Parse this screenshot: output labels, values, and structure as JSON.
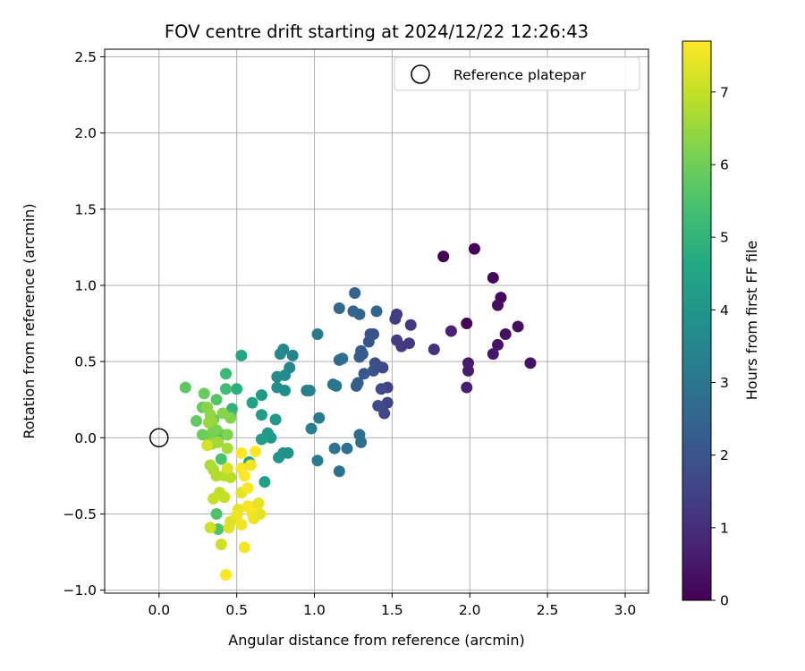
{
  "chart_data": {
    "type": "scatter",
    "title": "FOV centre drift starting at 2024/12/22 12:26:43",
    "xlabel": "Angular distance from reference (arcmin)",
    "ylabel": "Rotation from reference (arcmin)",
    "colorbar_label": "Hours from first FF file",
    "xlim": [
      -0.35,
      3.15
    ],
    "ylim": [
      -1.02,
      2.55
    ],
    "clim": [
      0,
      7.7
    ],
    "colormap": "viridis",
    "grid": true,
    "legend_position": "top-right",
    "xticks": [
      0.0,
      0.5,
      1.0,
      1.5,
      2.0,
      2.5,
      3.0
    ],
    "xtick_labels": [
      "0.0",
      "0.5",
      "1.0",
      "1.5",
      "2.0",
      "2.5",
      "3.0"
    ],
    "yticks": [
      -1.0,
      -0.5,
      0.0,
      0.5,
      1.0,
      1.5,
      2.0,
      2.5
    ],
    "ytick_labels": [
      "−1.0",
      "−0.5",
      "0.0",
      "0.5",
      "1.0",
      "1.5",
      "2.0",
      "2.5"
    ],
    "cticks": [
      0,
      1,
      2,
      3,
      4,
      5,
      6,
      7
    ],
    "ctick_labels": [
      "0",
      "1",
      "2",
      "3",
      "4",
      "5",
      "6",
      "7"
    ],
    "reference": {
      "name": "Reference platepar",
      "x": 0.0,
      "y": 0.0
    },
    "points": [
      [
        1.83,
        1.19,
        0.0
      ],
      [
        2.03,
        1.24,
        0.05
      ],
      [
        1.98,
        0.75,
        0.1
      ],
      [
        2.15,
        1.05,
        0.15
      ],
      [
        2.2,
        0.92,
        0.2
      ],
      [
        2.18,
        0.87,
        0.25
      ],
      [
        2.31,
        0.73,
        0.3
      ],
      [
        2.23,
        0.68,
        0.35
      ],
      [
        2.39,
        0.49,
        0.4
      ],
      [
        2.18,
        0.61,
        0.45
      ],
      [
        2.15,
        0.55,
        0.5
      ],
      [
        1.99,
        0.49,
        0.55
      ],
      [
        1.99,
        0.44,
        0.6
      ],
      [
        1.98,
        0.33,
        0.65
      ],
      [
        1.88,
        0.7,
        0.7
      ],
      [
        1.77,
        0.58,
        1.1
      ],
      [
        1.62,
        0.74,
        1.2
      ],
      [
        1.61,
        0.62,
        1.25
      ],
      [
        1.56,
        0.6,
        1.3
      ],
      [
        1.53,
        0.64,
        1.35
      ],
      [
        1.53,
        0.81,
        1.4
      ],
      [
        1.52,
        0.78,
        1.45
      ],
      [
        1.47,
        0.33,
        1.5
      ],
      [
        1.47,
        0.23,
        1.55
      ],
      [
        1.45,
        0.16,
        1.6
      ],
      [
        1.44,
        0.46,
        1.65
      ],
      [
        1.43,
        0.32,
        1.7
      ],
      [
        1.41,
        0.47,
        1.75
      ],
      [
        1.41,
        0.21,
        1.8
      ],
      [
        1.39,
        0.49,
        1.85
      ],
      [
        1.38,
        0.44,
        1.9
      ],
      [
        1.38,
        0.68,
        1.95
      ],
      [
        1.36,
        0.68,
        2.0
      ],
      [
        1.35,
        0.63,
        2.05
      ],
      [
        1.32,
        0.42,
        2.1
      ],
      [
        1.31,
        0.55,
        2.15
      ],
      [
        1.3,
        0.57,
        2.2
      ],
      [
        1.29,
        0.53,
        2.25
      ],
      [
        1.28,
        0.36,
        2.3
      ],
      [
        1.27,
        0.34,
        2.35
      ],
      [
        1.26,
        0.95,
        2.4
      ],
      [
        1.25,
        0.83,
        2.45
      ],
      [
        1.29,
        0.81,
        2.5
      ],
      [
        1.4,
        0.83,
        2.55
      ],
      [
        1.16,
        0.85,
        2.6
      ],
      [
        1.16,
        0.51,
        2.65
      ],
      [
        1.18,
        0.52,
        2.7
      ],
      [
        1.29,
        0.02,
        2.75
      ],
      [
        1.3,
        -0.03,
        2.8
      ],
      [
        1.21,
        -0.07,
        2.85
      ],
      [
        1.13,
        -0.07,
        2.9
      ],
      [
        1.16,
        -0.22,
        2.95
      ],
      [
        1.12,
        0.35,
        3.0
      ],
      [
        1.14,
        0.34,
        3.05
      ],
      [
        1.02,
        0.68,
        3.1
      ],
      [
        1.03,
        0.13,
        3.15
      ],
      [
        1.02,
        -0.15,
        3.2
      ],
      [
        0.98,
        0.06,
        3.25
      ],
      [
        0.97,
        0.31,
        3.3
      ],
      [
        0.95,
        0.31,
        3.35
      ],
      [
        0.86,
        0.54,
        3.45
      ],
      [
        0.84,
        0.46,
        3.5
      ],
      [
        0.8,
        0.58,
        3.55
      ],
      [
        0.78,
        0.55,
        3.6
      ],
      [
        0.81,
        0.41,
        3.65
      ],
      [
        0.76,
        0.4,
        3.7
      ],
      [
        0.81,
        0.31,
        3.75
      ],
      [
        0.76,
        0.33,
        3.8
      ],
      [
        0.83,
        -0.1,
        3.85
      ],
      [
        0.8,
        -0.1,
        3.9
      ],
      [
        0.77,
        -0.13,
        3.95
      ],
      [
        0.75,
        0.12,
        4.05
      ],
      [
        0.72,
        0.0,
        4.1
      ],
      [
        0.7,
        0.03,
        4.15
      ],
      [
        0.66,
        0.28,
        4.2
      ],
      [
        0.66,
        0.15,
        4.25
      ],
      [
        0.66,
        -0.01,
        4.3
      ],
      [
        0.68,
        -0.29,
        4.35
      ],
      [
        0.6,
        0.23,
        4.4
      ],
      [
        0.58,
        -0.16,
        4.45
      ],
      [
        0.53,
        0.54,
        4.6
      ],
      [
        0.5,
        0.32,
        4.8
      ],
      [
        0.47,
        0.19,
        5.0
      ],
      [
        0.46,
        0.15,
        5.1
      ],
      [
        0.43,
        0.42,
        5.2
      ],
      [
        0.43,
        0.32,
        5.3
      ],
      [
        0.4,
        0.02,
        5.4
      ],
      [
        0.4,
        -0.14,
        5.45
      ],
      [
        0.37,
        -0.5,
        5.5
      ],
      [
        0.38,
        -0.6,
        5.55
      ],
      [
        0.37,
        0.25,
        5.6
      ],
      [
        0.35,
        0.12,
        5.7
      ],
      [
        0.17,
        0.33,
        5.75
      ],
      [
        0.24,
        0.11,
        5.8
      ],
      [
        0.28,
        0.2,
        5.85
      ],
      [
        0.29,
        0.29,
        5.9
      ],
      [
        0.28,
        0.02,
        5.95
      ],
      [
        0.31,
        0.01,
        6.0
      ],
      [
        0.33,
        0.0,
        6.05
      ],
      [
        0.35,
        0.05,
        6.1
      ],
      [
        0.37,
        0.05,
        6.15
      ],
      [
        0.44,
        0.02,
        6.2
      ],
      [
        0.46,
        0.13,
        6.25
      ],
      [
        0.41,
        0.16,
        6.3
      ],
      [
        0.31,
        0.2,
        6.35
      ],
      [
        0.33,
        0.15,
        6.4
      ],
      [
        0.34,
        0.11,
        6.45
      ],
      [
        0.32,
        0.1,
        6.5
      ],
      [
        0.34,
        -0.04,
        6.55
      ],
      [
        0.38,
        -0.03,
        6.6
      ],
      [
        0.44,
        -0.07,
        6.65
      ],
      [
        0.33,
        -0.18,
        6.7
      ],
      [
        0.35,
        -0.21,
        6.75
      ],
      [
        0.37,
        -0.25,
        6.8
      ],
      [
        0.42,
        -0.25,
        6.85
      ],
      [
        0.46,
        -0.26,
        6.9
      ],
      [
        0.39,
        -0.36,
        6.95
      ],
      [
        0.42,
        -0.39,
        7.0
      ],
      [
        0.35,
        -0.4,
        7.05
      ],
      [
        0.33,
        -0.59,
        7.1
      ],
      [
        0.4,
        -0.7,
        7.15
      ],
      [
        0.31,
        -0.05,
        7.2
      ],
      [
        0.44,
        -0.2,
        7.25
      ],
      [
        0.46,
        -0.55,
        7.3
      ],
      [
        0.45,
        -0.59,
        7.35
      ],
      [
        0.53,
        -0.36,
        7.4
      ],
      [
        0.51,
        -0.47,
        7.45
      ],
      [
        0.5,
        -0.51,
        7.5
      ],
      [
        0.53,
        -0.57,
        7.55
      ],
      [
        0.55,
        -0.72,
        7.6
      ],
      [
        0.57,
        -0.45,
        7.62
      ],
      [
        0.53,
        -0.2,
        7.64
      ],
      [
        0.55,
        -0.25,
        7.66
      ],
      [
        0.53,
        -0.1,
        7.68
      ],
      [
        0.62,
        -0.09,
        7.7
      ],
      [
        0.59,
        -0.18,
        7.55
      ],
      [
        0.6,
        -0.5,
        7.6
      ],
      [
        0.57,
        -0.33,
        7.65
      ],
      [
        0.62,
        -0.45,
        7.7
      ],
      [
        0.61,
        -0.53,
        7.5
      ],
      [
        0.64,
        -0.43,
        7.45
      ],
      [
        0.65,
        -0.5,
        7.4
      ],
      [
        0.43,
        -0.9,
        7.7
      ]
    ]
  }
}
